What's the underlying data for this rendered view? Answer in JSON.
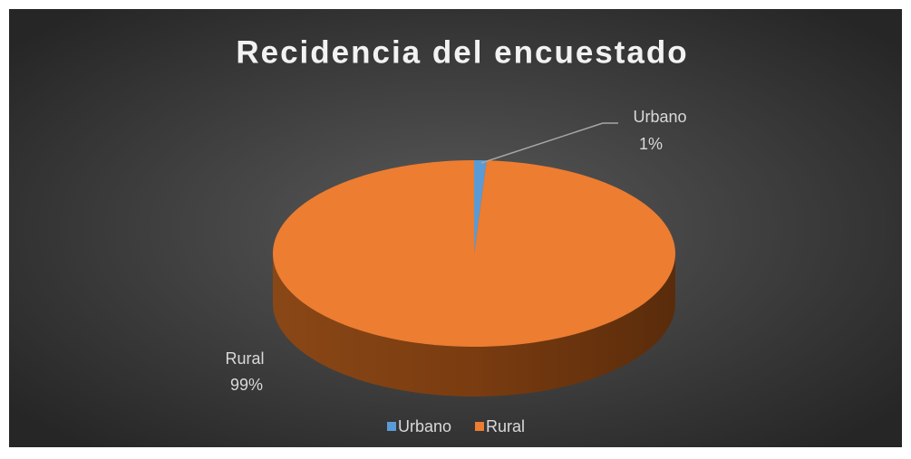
{
  "chart_data": {
    "type": "pie3d",
    "title": "Recidencia del encuestado",
    "categories": [
      "Urbano",
      "Rural"
    ],
    "values": [
      1,
      99
    ],
    "value_labels": [
      "1%",
      "99%"
    ],
    "colors": [
      "#5b9bd5",
      "#ed7d31"
    ],
    "legend": "bottom"
  }
}
